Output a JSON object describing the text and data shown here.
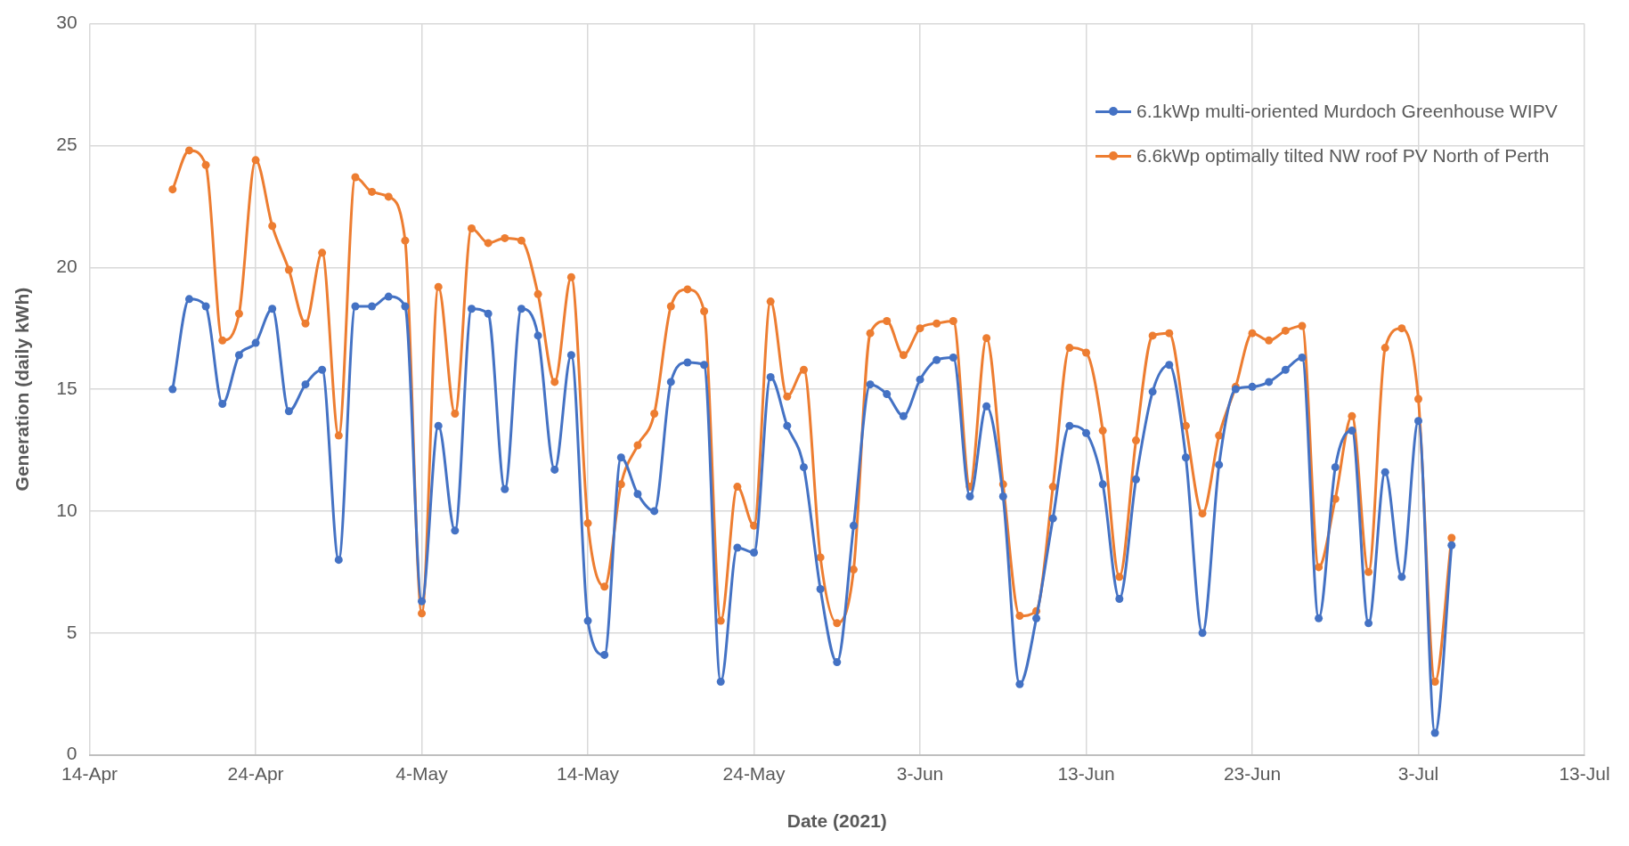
{
  "chart_data": {
    "type": "line",
    "xlabel": "Date (2021)",
    "ylabel": "Generation (daily kWh)",
    "x": [
      "2021-04-19",
      "2021-04-20",
      "2021-04-21",
      "2021-04-22",
      "2021-04-23",
      "2021-04-24",
      "2021-04-25",
      "2021-04-26",
      "2021-04-27",
      "2021-04-28",
      "2021-04-29",
      "2021-04-30",
      "2021-05-01",
      "2021-05-02",
      "2021-05-03",
      "2021-05-04",
      "2021-05-05",
      "2021-05-06",
      "2021-05-07",
      "2021-05-08",
      "2021-05-09",
      "2021-05-10",
      "2021-05-11",
      "2021-05-12",
      "2021-05-13",
      "2021-05-14",
      "2021-05-15",
      "2021-05-16",
      "2021-05-17",
      "2021-05-18",
      "2021-05-19",
      "2021-05-20",
      "2021-05-21",
      "2021-05-22",
      "2021-05-23",
      "2021-05-24",
      "2021-05-25",
      "2021-05-26",
      "2021-05-27",
      "2021-05-28",
      "2021-05-29",
      "2021-05-30",
      "2021-05-31",
      "2021-06-01",
      "2021-06-02",
      "2021-06-03",
      "2021-06-04",
      "2021-06-05",
      "2021-06-06",
      "2021-06-07",
      "2021-06-08",
      "2021-06-09",
      "2021-06-10",
      "2021-06-11",
      "2021-06-12",
      "2021-06-13",
      "2021-06-14",
      "2021-06-15",
      "2021-06-16",
      "2021-06-17",
      "2021-06-18",
      "2021-06-19",
      "2021-06-20",
      "2021-06-21",
      "2021-06-22",
      "2021-06-23",
      "2021-06-24",
      "2021-06-25",
      "2021-06-26",
      "2021-06-27",
      "2021-06-28",
      "2021-06-29",
      "2021-06-30",
      "2021-07-01",
      "2021-07-02",
      "2021-07-03",
      "2021-07-04",
      "2021-07-05"
    ],
    "series": [
      {
        "name": "6.1kWp multi-oriented Murdoch Greenhouse WIPV",
        "color": "#4472c4",
        "values": [
          15.0,
          18.7,
          18.4,
          14.4,
          16.4,
          16.9,
          18.3,
          14.1,
          15.2,
          15.8,
          8.0,
          18.4,
          18.4,
          18.8,
          18.4,
          6.3,
          13.5,
          9.2,
          18.3,
          18.1,
          10.9,
          18.3,
          17.2,
          11.7,
          16.4,
          5.5,
          4.1,
          12.2,
          10.7,
          10.0,
          15.3,
          16.1,
          16.0,
          3.0,
          8.5,
          8.3,
          15.5,
          13.5,
          11.8,
          6.8,
          3.8,
          9.4,
          15.2,
          14.8,
          13.9,
          15.4,
          16.2,
          16.3,
          10.6,
          14.3,
          10.6,
          2.9,
          5.6,
          9.7,
          13.5,
          13.2,
          11.1,
          6.4,
          11.3,
          14.9,
          16.0,
          12.2,
          5.0,
          11.9,
          15.0,
          15.1,
          15.3,
          15.8,
          16.3,
          5.6,
          11.8,
          13.3,
          5.4,
          11.6,
          7.3,
          13.7,
          0.9,
          8.6
        ]
      },
      {
        "name": "6.6kWp optimally tilted NW roof PV North of Perth",
        "color": "#ed7d31",
        "values": [
          23.2,
          24.8,
          24.2,
          17.0,
          18.1,
          24.4,
          21.7,
          19.9,
          17.7,
          20.6,
          13.1,
          23.7,
          23.1,
          22.9,
          21.1,
          5.8,
          19.2,
          14.0,
          21.6,
          21.0,
          21.2,
          21.1,
          18.9,
          15.3,
          19.6,
          9.5,
          6.9,
          11.1,
          12.7,
          14.0,
          18.4,
          19.1,
          18.2,
          5.5,
          11.0,
          9.4,
          18.6,
          14.7,
          15.8,
          8.1,
          5.4,
          7.6,
          17.3,
          17.8,
          16.4,
          17.5,
          17.7,
          17.8,
          11.0,
          17.1,
          11.1,
          5.7,
          5.9,
          11.0,
          16.7,
          16.5,
          13.3,
          7.3,
          12.9,
          17.2,
          17.3,
          13.5,
          9.9,
          13.1,
          15.1,
          17.3,
          17.0,
          17.4,
          17.6,
          7.7,
          10.5,
          13.9,
          7.5,
          16.7,
          17.5,
          14.6,
          3.0,
          8.9
        ]
      }
    ],
    "xlim": [
      "2021-04-14",
      "2021-07-13"
    ],
    "xticks": [
      {
        "value": "2021-04-14",
        "label": "14-Apr"
      },
      {
        "value": "2021-04-24",
        "label": "24-Apr"
      },
      {
        "value": "2021-05-04",
        "label": "4-May"
      },
      {
        "value": "2021-05-14",
        "label": "14-May"
      },
      {
        "value": "2021-05-24",
        "label": "24-May"
      },
      {
        "value": "2021-06-03",
        "label": "3-Jun"
      },
      {
        "value": "2021-06-13",
        "label": "13-Jun"
      },
      {
        "value": "2021-06-23",
        "label": "23-Jun"
      },
      {
        "value": "2021-07-03",
        "label": "3-Jul"
      },
      {
        "value": "2021-07-13",
        "label": "13-Jul"
      }
    ],
    "ylim": [
      0,
      30
    ],
    "yticks": [
      0,
      5,
      10,
      15,
      20,
      25,
      30
    ],
    "grid": true,
    "legend": "top right",
    "marker": "circle",
    "line_style": "solid"
  }
}
